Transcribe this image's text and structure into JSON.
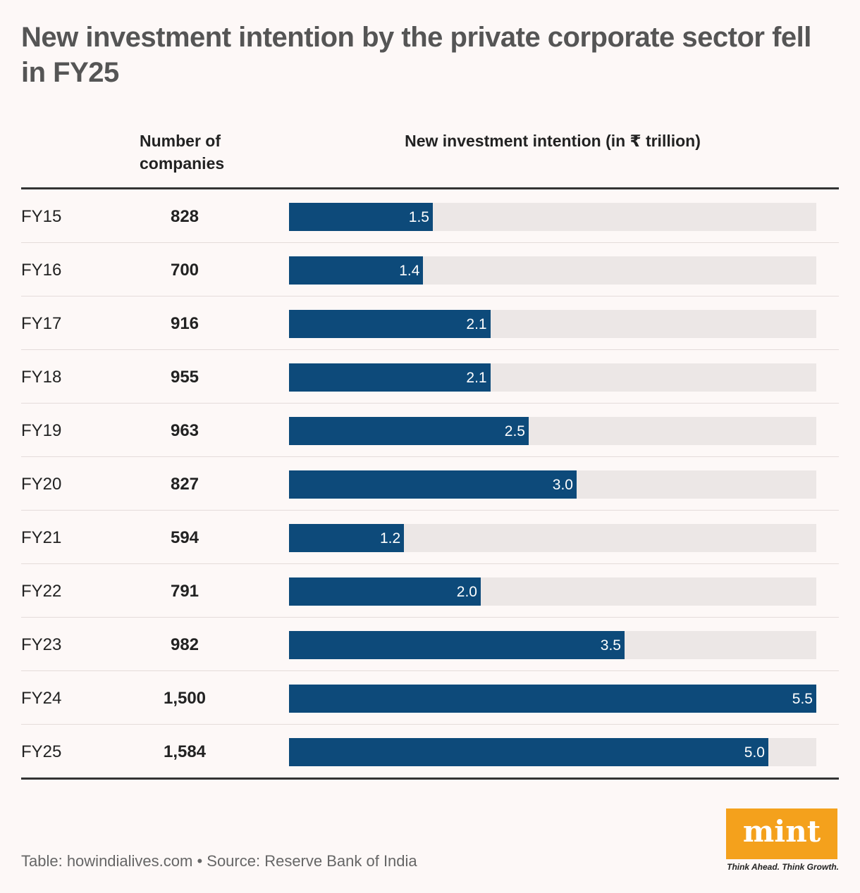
{
  "title": "New investment intention by the private corporate sector fell in FY25",
  "columns": {
    "companies_label": "Number of companies",
    "investment_label": "New investment intention (in ₹ trillion)"
  },
  "footer": "Table: howindialives.com • Source: Reserve Bank of India",
  "logo": {
    "text": "mint",
    "tagline": "Think Ahead. Think Growth."
  },
  "colors": {
    "bar": "#0d4a7a",
    "track": "#ece7e6",
    "logo": "#f4a11c"
  },
  "chart_data": {
    "type": "bar",
    "orientation": "horizontal",
    "categories": [
      "FY15",
      "FY16",
      "FY17",
      "FY18",
      "FY19",
      "FY20",
      "FY21",
      "FY22",
      "FY23",
      "FY24",
      "FY25"
    ],
    "companies": [
      "828",
      "700",
      "916",
      "955",
      "963",
      "827",
      "594",
      "791",
      "982",
      "1,500",
      "1,584"
    ],
    "values": [
      1.5,
      1.4,
      2.1,
      2.1,
      2.5,
      3.0,
      1.2,
      2.0,
      3.5,
      5.5,
      5.0
    ],
    "value_labels": [
      "1.5",
      "1.4",
      "2.1",
      "2.1",
      "2.5",
      "3.0",
      "1.2",
      "2.0",
      "3.5",
      "5.5",
      "5.0"
    ],
    "xlim": [
      0,
      5.5
    ],
    "grid": false
  }
}
